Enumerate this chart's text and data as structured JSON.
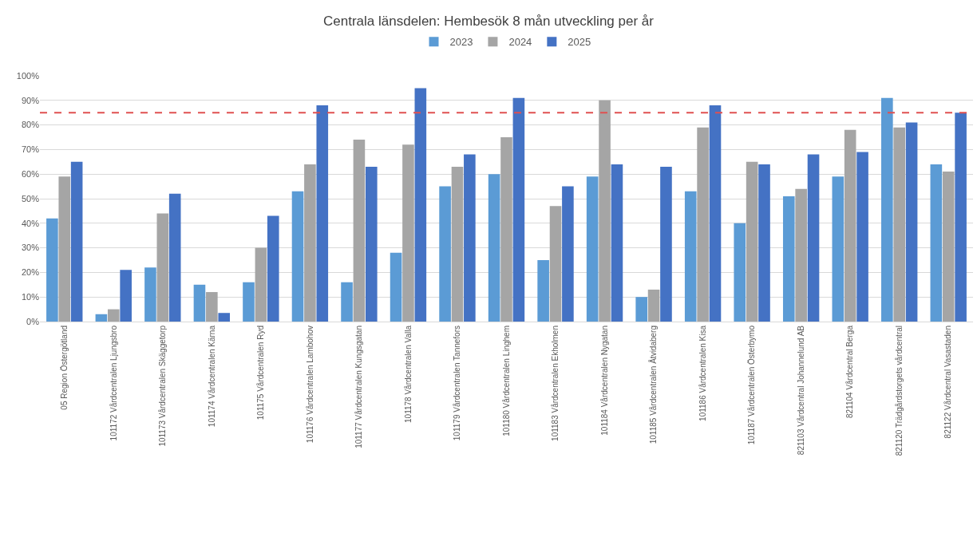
{
  "chart_data": {
    "type": "bar",
    "title": "Centrala länsdelen: Hembesök 8 mån utveckling per år",
    "categories": [
      "05 Region Östergötland",
      "101172 Vårdcentralen Ljungsbro",
      "101173 Vårdcentralen Skäggetorp",
      "101174 Vårdcentralen Kärna",
      "101175 Vårdcentralen Ryd",
      "101176 Vårdcentralen Lambohov",
      "101177 Vårdcentralen Kungsgatan",
      "101178 Vårdcentralen Valla",
      "101179 Vårdcentralen Tannefors",
      "101180 Vårdcentralen Linghem",
      "101183 Vårdcentralen Ekholmen",
      "101184 Vårdcentralen Nygatan",
      "101185 Vårdcentralen Åtvidaberg",
      "101186 Vårdcentralen Kisa",
      "101187 Vårdcentralen Österbymo",
      "821103 Vårdcentral Johannelund AB",
      "821104 Vårdcentral Berga",
      "821120 Trädgårdstorgets vårdcentral",
      "821122 Vårdcentral Vasastaden"
    ],
    "series": [
      {
        "name": "2023",
        "color": "#5b9bd5",
        "values": [
          42,
          3,
          22,
          15,
          16,
          53,
          16,
          28,
          55,
          60,
          25,
          59,
          10,
          53,
          40,
          51,
          59,
          91,
          64
        ]
      },
      {
        "name": "2024",
        "color": "#a5a5a5",
        "values": [
          59,
          5,
          44,
          12,
          30,
          64,
          74,
          72,
          63,
          75,
          47,
          90,
          13,
          79,
          65,
          54,
          78,
          79,
          61
        ]
      },
      {
        "name": "2025",
        "color": "#4472c4",
        "values": [
          65,
          21,
          52,
          3.5,
          43,
          88,
          63,
          95,
          68,
          91,
          55,
          64,
          63,
          88,
          64,
          68,
          69,
          81,
          85
        ]
      }
    ],
    "ylim": [
      0,
      100
    ],
    "yticks": [
      {
        "value": 0,
        "label": "0%"
      },
      {
        "value": 10,
        "label": "10%"
      },
      {
        "value": 20,
        "label": "20%"
      },
      {
        "value": 30,
        "label": "30%"
      },
      {
        "value": 40,
        "label": "40%"
      },
      {
        "value": 50,
        "label": "50%"
      },
      {
        "value": 60,
        "label": "60%"
      },
      {
        "value": 70,
        "label": "70%"
      },
      {
        "value": 80,
        "label": "80%"
      },
      {
        "value": 90,
        "label": "90%"
      },
      {
        "value": 100,
        "label": "100%"
      }
    ],
    "ref_lines": [
      {
        "axis": "y",
        "value": 85,
        "label": null,
        "color": "#e05050",
        "line_style": "dashed"
      }
    ],
    "grid": "y",
    "legend": "top"
  }
}
